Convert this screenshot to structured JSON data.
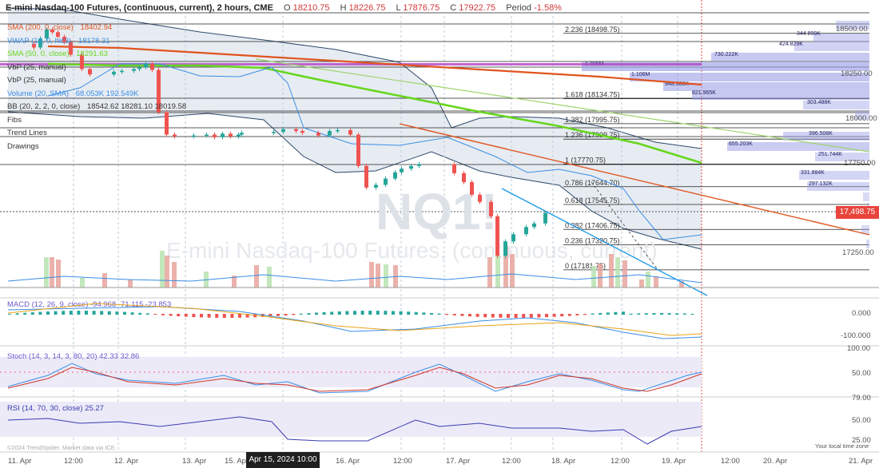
{
  "header": {
    "title": "E-mini Nasdaq-100 Futures, (continuous, current), 2 hours, CME",
    "open_label": "O",
    "open": "18210.75",
    "high_label": "H",
    "high": "18226.75",
    "low_label": "L",
    "low": "17876.75",
    "close_label": "C",
    "close": "17922.75",
    "period_label": "Period",
    "period": "-1.58%"
  },
  "legend": [
    {
      "text": "SMA (200, 0, close)",
      "value": "18402.94",
      "color": "#e0541e"
    },
    {
      "text": "VWAP (14, 0, hlc3)",
      "value": "18178.31",
      "color": "#3a8ee6"
    },
    {
      "text": "SMA (50, 0, close)",
      "value": "18291.63",
      "color": "#66d61e"
    },
    {
      "text": "VbP (25, manual)",
      "value": "",
      "color": "#333333"
    },
    {
      "text": "VbP (25, manual)",
      "value": "",
      "color": "#333333"
    },
    {
      "text": "Volume (20, SMA)",
      "value": "68.053K  192.549K",
      "color": "#3a8ee6"
    },
    {
      "text": "BB (20, 2, 2, 0, close)",
      "value": "18542.62  18281.10  18019.58",
      "color": "#333333"
    },
    {
      "text": "Fibs",
      "value": "",
      "color": "#333333"
    },
    {
      "text": "Trend Lines",
      "value": "",
      "color": "#333333"
    },
    {
      "text": "Drawings",
      "value": "",
      "color": "#333333"
    }
  ],
  "watermark": {
    "symbol": "NQ1!",
    "name": "E-mini Nasdaq-100 Futures, (continuous, current)"
  },
  "current_price_tag": "17,498.75",
  "crosshair_date": "Apr 15, 2024 10:00",
  "x_axis_labels": [
    "11. Apr",
    "12:00",
    "12. Apr",
    "13. Apr",
    "15. Apr",
    "16. Apr",
    "12:00",
    "17. Apr",
    "12:00",
    "18. Apr",
    "12:00",
    "19. Apr",
    "12:00",
    "20. Apr",
    "21. Apr"
  ],
  "price_axis_labels": [
    "18500.00",
    "18250.00",
    "18000.00",
    "17750.00",
    "17250.00"
  ],
  "fib_levels": [
    {
      "label": "2.236 (18498.75)",
      "price": 18498.75
    },
    {
      "label": "1.618 (18134.75)",
      "price": 18134.75
    },
    {
      "label": "1.382 (17995.75)",
      "price": 17995.75
    },
    {
      "label": "1.236 (17909.75)",
      "price": 17909.75
    },
    {
      "label": "1 (17770.75)",
      "price": 17770.75
    },
    {
      "label": "0.786 (17644.70)",
      "price": 17644.7
    },
    {
      "label": "0.618 (17545.75)",
      "price": 17545.75
    },
    {
      "label": "0.382 (17406.75)",
      "price": 17406.75
    },
    {
      "label": "0.236 (17320.75)",
      "price": 17320.75
    },
    {
      "label": "0 (17181.75)",
      "price": 17181.75
    }
  ],
  "volume_profile_labels": [
    "344.899K",
    "424.829K",
    "730.222K",
    "1.306M",
    "1.106M",
    "948.308K",
    "821.965K",
    "303.488K",
    "396.508K",
    "655.203K",
    "251.744K",
    "331.884K",
    "297.132K"
  ],
  "macd": {
    "label": "MACD (12, 26, 9, close)",
    "values": "-94.968  -71.115  -23.853",
    "axis": [
      "0.000",
      "-100.000"
    ]
  },
  "stoch": {
    "label": "Stoch (14, 3, 14, 3, 80, 20)",
    "values": "42.33  32.86",
    "axis": [
      "100.00",
      "50.00",
      "79.00"
    ]
  },
  "rsi": {
    "label": "RSI (14, 70, 30, close)",
    "value": "25.27",
    "axis": [
      "50.00",
      "25.00"
    ]
  },
  "footer_left": "©2024 TrendSpider. Market data via ICE.",
  "footer_right": "Your local time zone",
  "colors": {
    "up": "#26a69a",
    "down": "#ef5350",
    "sma200": "#e0541e",
    "sma50": "#66d61e",
    "bb_fill": "#dfe6ee",
    "trend_blue": "#1e9be8",
    "profile": "#9b9fe6"
  },
  "chart_data": {
    "type": "candlestick",
    "series": [
      {
        "name": "NQ1!",
        "ohlc_close": [
          18420,
          18470,
          18520,
          18505,
          18480,
          18450,
          18380,
          18300,
          18270,
          18285,
          18290,
          18300,
          18310,
          18330,
          18295,
          18060,
          17935,
          17925,
          17930,
          17935,
          17920,
          17940,
          17925,
          17935,
          17945,
          17950,
          17965,
          17955,
          17945,
          17930,
          17955,
          17960,
          17935,
          17760,
          17640,
          17655,
          17690,
          17725,
          17745,
          17760,
          17770,
          17720,
          17670,
          17600,
          17560,
          17480,
          17260,
          17340,
          17380,
          17420,
          17440,
          17499
        ]
      },
      {
        "name": "SMA (200, 0, close)",
        "y": [
          18430,
          18420,
          18405,
          18390,
          18375,
          18350,
          18320,
          18290,
          18260,
          18240,
          18225
        ]
      },
      {
        "name": "SMA (50, 0, close)",
        "y": [
          18320,
          18318,
          18312,
          18300,
          18275,
          18230,
          18180,
          18110,
          18030,
          17940,
          17870,
          17790
        ]
      }
    ],
    "ylim": [
      17150,
      18560
    ],
    "xlabel": "",
    "ylabel": ""
  }
}
